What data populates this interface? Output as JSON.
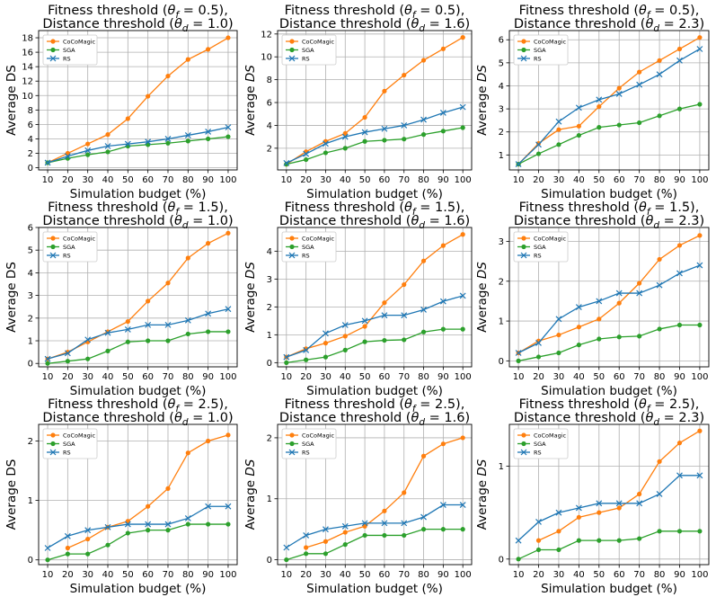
{
  "series_names": [
    "CoCoMagic",
    "SGA",
    "RS"
  ],
  "series_colors": {
    "CoCoMagic": "#ff7f0e",
    "SGA": "#2ca02c",
    "RS": "#1f77b4"
  },
  "chart_data": [
    {
      "type": "line",
      "title_line1": "Fitness threshold (θf = 0.5),",
      "title_line2": "Distance threshold (θd = 1.0)",
      "xlabel": "Simulation budget (%)",
      "ylabel": "Average DS",
      "x": [
        10,
        20,
        30,
        40,
        50,
        60,
        70,
        80,
        90,
        100
      ],
      "xticks": [
        "10",
        "20",
        "30",
        "40",
        "50",
        "60",
        "70",
        "80",
        "90",
        "100"
      ],
      "ylim": [
        -0.3,
        19
      ],
      "yticks": [
        0,
        2,
        4,
        6,
        8,
        10,
        12,
        14,
        16,
        18
      ],
      "ytick_labels": [
        "0",
        "2",
        "4",
        "6",
        "8",
        "10",
        "12",
        "14",
        "16",
        "18"
      ],
      "series": [
        {
          "name": "CoCoMagic",
          "values": [
            0.7,
            2.0,
            3.3,
            4.6,
            6.8,
            9.9,
            12.7,
            15.0,
            16.4,
            18.0
          ]
        },
        {
          "name": "SGA",
          "values": [
            0.7,
            1.3,
            1.8,
            2.2,
            3.0,
            3.2,
            3.4,
            3.7,
            4.0,
            4.3
          ]
        },
        {
          "name": "RS",
          "values": [
            0.7,
            1.6,
            2.4,
            3.0,
            3.3,
            3.6,
            4.0,
            4.5,
            5.0,
            5.6
          ]
        }
      ]
    },
    {
      "type": "line",
      "title_line1": "Fitness threshold (θf = 0.5),",
      "title_line2": "Distance threshold (θd = 1.6)",
      "xlabel": "Simulation budget (%)",
      "ylabel": "",
      "x": [
        10,
        20,
        30,
        40,
        50,
        60,
        70,
        80,
        90,
        100
      ],
      "xticks": [
        "10",
        "20",
        "30",
        "40",
        "50",
        "60",
        "70",
        "80",
        "90",
        "100"
      ],
      "ylim": [
        0.1,
        12.3
      ],
      "yticks": [
        2,
        4,
        6,
        8,
        10,
        12
      ],
      "ytick_labels": [
        "2",
        "4",
        "6",
        "8",
        "10",
        "12"
      ],
      "series": [
        {
          "name": "CoCoMagic",
          "values": [
            0.6,
            1.7,
            2.6,
            3.3,
            4.7,
            7.0,
            8.4,
            9.7,
            10.7,
            11.7
          ]
        },
        {
          "name": "SGA",
          "values": [
            0.6,
            1.0,
            1.6,
            2.0,
            2.6,
            2.7,
            2.8,
            3.2,
            3.5,
            3.8
          ]
        },
        {
          "name": "RS",
          "values": [
            0.7,
            1.5,
            2.4,
            3.0,
            3.4,
            3.7,
            4.0,
            4.5,
            5.1,
            5.6
          ]
        }
      ]
    },
    {
      "type": "line",
      "title_line1": "Fitness threshold (θf = 0.5),",
      "title_line2": "Distance threshold (θd = 2.3)",
      "xlabel": "Simulation budget (%)",
      "ylabel": "",
      "x": [
        10,
        20,
        30,
        40,
        50,
        60,
        70,
        80,
        90,
        100
      ],
      "xticks": [
        "10",
        "20",
        "30",
        "40",
        "50",
        "60",
        "70",
        "80",
        "90",
        "100"
      ],
      "ylim": [
        0.35,
        6.4
      ],
      "yticks": [
        1,
        2,
        3,
        4,
        5,
        6
      ],
      "ytick_labels": [
        "1",
        "2",
        "3",
        "4",
        "5",
        "6"
      ],
      "series": [
        {
          "name": "CoCoMagic",
          "values": [
            0.6,
            1.5,
            2.1,
            2.25,
            3.1,
            3.9,
            4.6,
            5.1,
            5.6,
            6.1
          ]
        },
        {
          "name": "SGA",
          "values": [
            0.6,
            1.05,
            1.45,
            1.85,
            2.2,
            2.3,
            2.4,
            2.7,
            3.0,
            3.2
          ]
        },
        {
          "name": "RS",
          "values": [
            0.6,
            1.45,
            2.45,
            3.05,
            3.4,
            3.65,
            4.05,
            4.5,
            5.1,
            5.6
          ]
        }
      ]
    },
    {
      "type": "line",
      "title_line1": "Fitness threshold (θf = 1.5),",
      "title_line2": "Distance threshold (θd = 1.0)",
      "xlabel": "Simulation budget (%)",
      "ylabel": "Average DS",
      "x": [
        10,
        20,
        30,
        40,
        50,
        60,
        70,
        80,
        90,
        100
      ],
      "xticks": [
        "10",
        "20",
        "30",
        "40",
        "50",
        "60",
        "70",
        "80",
        "90",
        "100"
      ],
      "ylim": [
        -0.15,
        6.0
      ],
      "yticks": [
        0,
        1,
        2,
        3,
        4,
        5,
        6
      ],
      "ytick_labels": [
        "0",
        "1",
        "2",
        "3",
        "4",
        "5",
        "6"
      ],
      "series": [
        {
          "name": "CoCoMagic",
          "values": [
            0.2,
            0.5,
            0.95,
            1.4,
            1.85,
            2.75,
            3.55,
            4.65,
            5.3,
            5.75
          ]
        },
        {
          "name": "SGA",
          "values": [
            0.0,
            0.1,
            0.2,
            0.55,
            0.95,
            1.0,
            1.0,
            1.3,
            1.4,
            1.4
          ]
        },
        {
          "name": "RS",
          "values": [
            0.2,
            0.45,
            1.05,
            1.35,
            1.5,
            1.7,
            1.7,
            1.9,
            2.2,
            2.4
          ]
        }
      ]
    },
    {
      "type": "line",
      "title_line1": "Fitness threshold (θf = 1.5),",
      "title_line2": "Distance threshold (θd = 1.6)",
      "xlabel": "Simulation budget (%)",
      "ylabel": "",
      "x": [
        10,
        20,
        30,
        40,
        50,
        60,
        70,
        80,
        90,
        100
      ],
      "xticks": [
        "10",
        "20",
        "30",
        "40",
        "50",
        "60",
        "70",
        "80",
        "90",
        "100"
      ],
      "ylim": [
        -0.15,
        4.85
      ],
      "yticks": [
        0,
        1,
        2,
        3,
        4
      ],
      "ytick_labels": [
        "0",
        "1",
        "2",
        "3",
        "4"
      ],
      "series": [
        {
          "name": "CoCoMagic",
          "values": [
            0.2,
            0.5,
            0.7,
            0.95,
            1.3,
            2.15,
            2.8,
            3.65,
            4.2,
            4.6
          ]
        },
        {
          "name": "SGA",
          "values": [
            0.0,
            0.1,
            0.2,
            0.45,
            0.75,
            0.8,
            0.82,
            1.1,
            1.2,
            1.2
          ]
        },
        {
          "name": "RS",
          "values": [
            0.2,
            0.45,
            1.05,
            1.35,
            1.5,
            1.7,
            1.7,
            1.9,
            2.2,
            2.4
          ]
        }
      ]
    },
    {
      "type": "line",
      "title_line1": "Fitness threshold (θf = 1.5),",
      "title_line2": "Distance threshold (θd = 2.3)",
      "xlabel": "Simulation budget (%)",
      "ylabel": "",
      "x": [
        10,
        20,
        30,
        40,
        50,
        60,
        70,
        80,
        90,
        100
      ],
      "xticks": [
        "10",
        "20",
        "30",
        "40",
        "50",
        "60",
        "70",
        "80",
        "90",
        "100"
      ],
      "ylim": [
        -0.15,
        3.35
      ],
      "yticks": [
        0,
        1,
        2,
        3
      ],
      "ytick_labels": [
        "0",
        "1",
        "2",
        "3"
      ],
      "series": [
        {
          "name": "CoCoMagic",
          "values": [
            0.2,
            0.5,
            0.65,
            0.85,
            1.05,
            1.45,
            1.95,
            2.55,
            2.9,
            3.15
          ]
        },
        {
          "name": "SGA",
          "values": [
            0.0,
            0.1,
            0.2,
            0.4,
            0.55,
            0.6,
            0.62,
            0.8,
            0.9,
            0.9
          ]
        },
        {
          "name": "RS",
          "values": [
            0.2,
            0.45,
            1.05,
            1.35,
            1.5,
            1.7,
            1.7,
            1.9,
            2.2,
            2.4
          ]
        }
      ]
    },
    {
      "type": "line",
      "title_line1": "Fitness threshold (θf = 2.5),",
      "title_line2": "Distance threshold (θd = 1.0)",
      "xlabel": "Simulation budget (%)",
      "ylabel": "Average DS",
      "x": [
        10,
        20,
        30,
        40,
        50,
        60,
        70,
        80,
        90,
        100
      ],
      "xticks": [
        "10",
        "20",
        "30",
        "40",
        "50",
        "60",
        "70",
        "80",
        "90",
        "100"
      ],
      "ylim": [
        -0.08,
        2.28
      ],
      "yticks": [
        0,
        1,
        2
      ],
      "ytick_labels": [
        "0",
        "1",
        "2"
      ],
      "series": [
        {
          "name": "CoCoMagic",
          "x": [
            20,
            30,
            40,
            50,
            60,
            70,
            80,
            90,
            100
          ],
          "values": [
            0.2,
            0.35,
            0.55,
            0.65,
            0.9,
            1.2,
            1.8,
            2.0,
            2.1
          ]
        },
        {
          "name": "SGA",
          "values": [
            0.0,
            0.1,
            0.1,
            0.25,
            0.45,
            0.5,
            0.5,
            0.6,
            0.6,
            0.6
          ]
        },
        {
          "name": "RS",
          "values": [
            0.2,
            0.4,
            0.5,
            0.55,
            0.6,
            0.6,
            0.6,
            0.7,
            0.9,
            0.9
          ]
        }
      ]
    },
    {
      "type": "line",
      "title_line1": "Fitness threshold (θf = 2.5),",
      "title_line2": "Distance threshold (θd = 1.6)",
      "xlabel": "Simulation budget (%)",
      "ylabel": "",
      "x": [
        10,
        20,
        30,
        40,
        50,
        60,
        70,
        80,
        90,
        100
      ],
      "xticks": [
        "10",
        "20",
        "30",
        "40",
        "50",
        "60",
        "70",
        "80",
        "90",
        "100"
      ],
      "ylim": [
        -0.08,
        2.22
      ],
      "yticks": [
        0,
        1,
        2
      ],
      "ytick_labels": [
        "0",
        "1",
        "2"
      ],
      "series": [
        {
          "name": "CoCoMagic",
          "x": [
            20,
            30,
            40,
            50,
            60,
            70,
            80,
            90,
            100
          ],
          "values": [
            0.2,
            0.3,
            0.45,
            0.55,
            0.8,
            1.1,
            1.7,
            1.9,
            2.0
          ]
        },
        {
          "name": "SGA",
          "values": [
            0.0,
            0.1,
            0.1,
            0.25,
            0.4,
            0.4,
            0.4,
            0.5,
            0.5,
            0.5
          ]
        },
        {
          "name": "RS",
          "values": [
            0.2,
            0.4,
            0.5,
            0.55,
            0.6,
            0.6,
            0.6,
            0.7,
            0.9,
            0.9
          ]
        }
      ]
    },
    {
      "type": "line",
      "title_line1": "Fitness threshold (θf = 2.5),",
      "title_line2": "Distance threshold (θd = 2.3)",
      "xlabel": "Simulation budget (%)",
      "ylabel": "",
      "x": [
        10,
        20,
        30,
        40,
        50,
        60,
        70,
        80,
        90,
        100
      ],
      "xticks": [
        "10",
        "20",
        "30",
        "40",
        "50",
        "60",
        "70",
        "80",
        "90",
        "100"
      ],
      "ylim": [
        -0.06,
        1.45
      ],
      "yticks": [
        0,
        1
      ],
      "ytick_labels": [
        "0",
        "1"
      ],
      "series": [
        {
          "name": "CoCoMagic",
          "x": [
            20,
            30,
            40,
            50,
            60,
            70,
            80,
            90,
            100
          ],
          "values": [
            0.2,
            0.3,
            0.45,
            0.5,
            0.55,
            0.7,
            1.05,
            1.25,
            1.38
          ]
        },
        {
          "name": "SGA",
          "values": [
            0.0,
            0.1,
            0.1,
            0.2,
            0.2,
            0.2,
            0.22,
            0.3,
            0.3,
            0.3
          ]
        },
        {
          "name": "RS",
          "values": [
            0.2,
            0.4,
            0.5,
            0.55,
            0.6,
            0.6,
            0.6,
            0.7,
            0.9,
            0.9
          ]
        }
      ]
    }
  ]
}
